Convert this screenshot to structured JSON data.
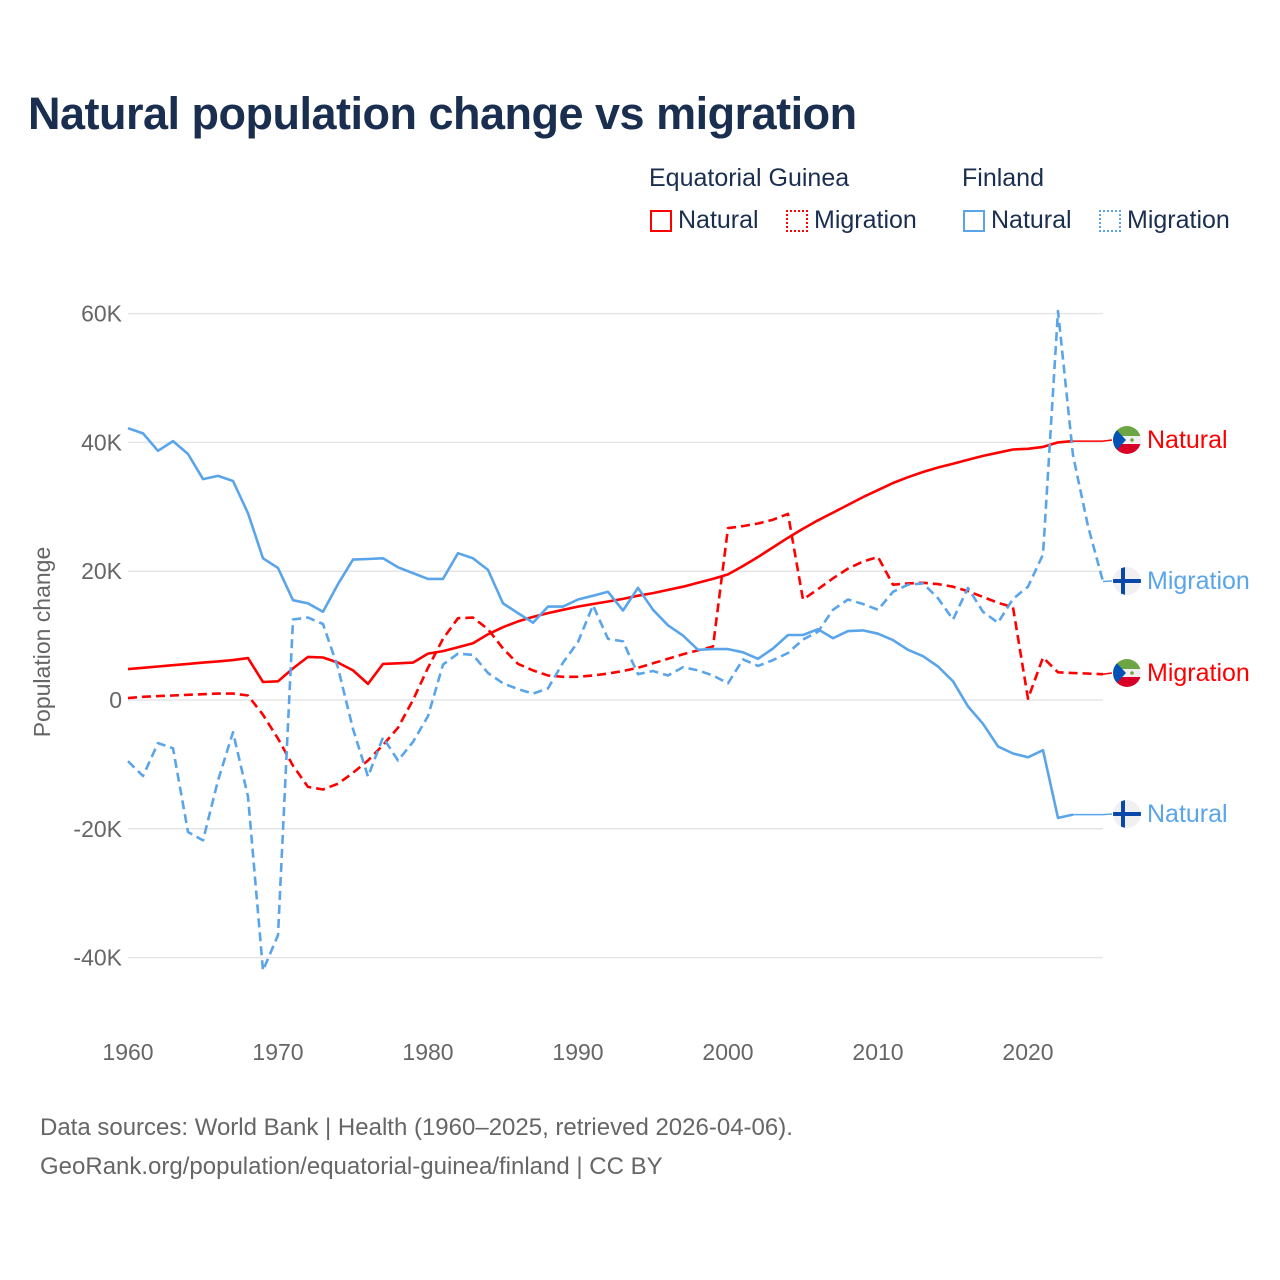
{
  "title": "Natural population change vs migration",
  "legend": {
    "groups": [
      {
        "name": "Equatorial Guinea",
        "color": "#ff0000",
        "items": [
          "Natural",
          "Migration"
        ]
      },
      {
        "name": "Finland",
        "color": "#5aa5ea",
        "items": [
          "Natural",
          "Migration"
        ]
      }
    ]
  },
  "footer": {
    "line1": "Data sources: World Bank | Health (1960–2025, retrieved 2026-04-06).",
    "line2": "GeoRank.org/population/equatorial-guinea/finland | CC BY"
  },
  "chart_data": {
    "type": "line",
    "title": "Natural population change vs migration",
    "xlabel": "",
    "ylabel": "Population change",
    "xlim": [
      1960,
      2025
    ],
    "ylim": [
      -40000,
      60000
    ],
    "x_ticks": [
      1960,
      1970,
      1980,
      1990,
      2000,
      2010,
      2020
    ],
    "x_tick_labels": [
      "1960",
      "1970",
      "1980",
      "1990",
      "2000",
      "2010",
      "2020"
    ],
    "y_ticks": [
      60000,
      40000,
      20000,
      0,
      -20000,
      -40000
    ],
    "y_tick_labels": [
      "60K",
      "40K",
      "20K",
      "0",
      "-20K",
      "-40K"
    ],
    "grid": true,
    "legend_position": "top-right",
    "series": [
      {
        "name": "Equatorial Guinea Natural",
        "country": "Equatorial Guinea",
        "label": "Natural",
        "color": "#ff0000",
        "style": "solid",
        "flag": "equatorial-guinea",
        "start": 1960,
        "values_k": [
          4.8,
          5.0,
          5.2,
          5.4,
          5.6,
          5.8,
          6.0,
          6.2,
          6.5,
          2.8,
          2.9,
          4.9,
          6.7,
          6.6,
          5.8,
          4.6,
          2.5,
          5.6,
          5.7,
          5.8,
          7.2,
          7.6,
          8.2,
          8.8,
          10.2,
          11.3,
          12.2,
          12.9,
          13.5,
          14.0,
          14.5,
          14.9,
          15.3,
          15.7,
          16.2,
          16.6,
          17.1,
          17.6,
          18.2,
          18.8,
          19.5,
          20.8,
          22.2,
          23.7,
          25.2,
          26.6,
          27.9,
          29.1,
          30.3,
          31.5,
          32.6,
          33.7,
          34.6,
          35.4,
          36.1,
          36.7,
          37.3,
          37.9,
          38.4,
          38.9,
          39.0,
          39.3,
          40.0,
          40.2
        ]
      },
      {
        "name": "Equatorial Guinea Migration",
        "country": "Equatorial Guinea",
        "label": "Migration",
        "color": "#ff0000",
        "style": "dashed",
        "flag": "equatorial-guinea",
        "start": 1960,
        "values_k": [
          0.3,
          0.5,
          0.6,
          0.7,
          0.8,
          0.9,
          1.0,
          1.0,
          0.7,
          -2.3,
          -6.0,
          -10.2,
          -13.5,
          -13.9,
          -13.0,
          -11.3,
          -9.4,
          -7.0,
          -4.3,
          0.0,
          5.0,
          9.5,
          12.7,
          12.8,
          11.0,
          8.0,
          5.6,
          4.6,
          3.8,
          3.6,
          3.6,
          3.8,
          4.1,
          4.5,
          5.0,
          5.7,
          6.4,
          7.1,
          7.7,
          8.3,
          26.7,
          27.0,
          27.4,
          28.0,
          28.9,
          15.6,
          17.2,
          18.9,
          20.4,
          21.5,
          22.2,
          17.9,
          18.1,
          18.2,
          18.0,
          17.6,
          16.9,
          16.0,
          15.1,
          14.4,
          0.2,
          6.6,
          4.3,
          4.2,
          4.1,
          4.0
        ]
      },
      {
        "name": "Finland Natural",
        "country": "Finland",
        "label": "Natural",
        "color": "#5aa5ea",
        "style": "solid",
        "flag": "finland",
        "start": 1960,
        "values_k": [
          42.2,
          41.4,
          38.7,
          40.2,
          38.2,
          34.3,
          34.8,
          34.0,
          29.0,
          22.0,
          20.5,
          15.5,
          15.0,
          13.7,
          18.0,
          21.8,
          21.9,
          22.0,
          20.6,
          19.7,
          18.8,
          18.8,
          22.8,
          22.0,
          20.2,
          15.0,
          13.5,
          12.0,
          14.5,
          14.5,
          15.6,
          16.2,
          16.8,
          13.9,
          17.4,
          14.0,
          11.6,
          10.0,
          7.8,
          7.9,
          7.9,
          7.4,
          6.4,
          8.0,
          10.1,
          10.1,
          11.0,
          9.6,
          10.7,
          10.8,
          10.3,
          9.3,
          7.8,
          6.8,
          5.2,
          2.9,
          -1.0,
          -3.7,
          -7.2,
          -8.3,
          -8.9,
          -7.8,
          -18.3,
          -17.8
        ]
      },
      {
        "name": "Finland Migration",
        "country": "Finland",
        "label": "Migration",
        "color": "#5aa5ea",
        "style": "dashed",
        "flag": "finland",
        "start": 1960,
        "values_k": [
          -9.5,
          -11.8,
          -6.7,
          -7.5,
          -20.5,
          -21.8,
          -12.5,
          -5.0,
          -15.0,
          -42.0,
          -36.5,
          12.5,
          12.8,
          11.8,
          5.0,
          -4.5,
          -11.9,
          -5.8,
          -9.4,
          -6.5,
          -2.5,
          5.5,
          7.2,
          7.0,
          4.2,
          2.6,
          1.7,
          1.0,
          1.8,
          5.8,
          9.0,
          14.7,
          9.5,
          9.1,
          4.0,
          4.5,
          3.8,
          5.1,
          4.6,
          3.8,
          2.6,
          6.3,
          5.3,
          6.2,
          7.3,
          9.4,
          10.6,
          14.0,
          15.6,
          14.9,
          14.0,
          16.8,
          17.9,
          18.1,
          15.8,
          12.5,
          17.4,
          13.7,
          12.0,
          15.7,
          17.6,
          22.6,
          60.4,
          38.0,
          27.0,
          18.4
        ]
      }
    ]
  }
}
